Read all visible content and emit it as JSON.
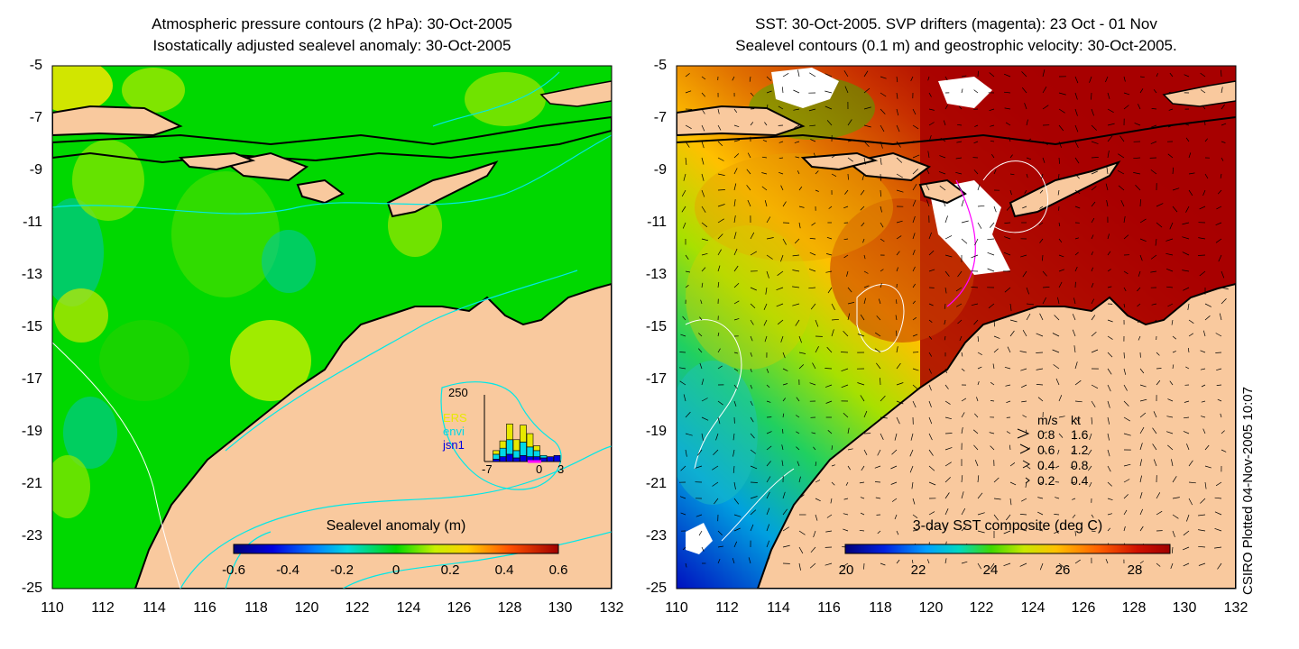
{
  "left_panel": {
    "title_line1": "Atmospheric pressure contours (2 hPa): 30-Oct-2005",
    "title_line2": "Isostatically adjusted sealevel anomaly: 30-Oct-2005",
    "colorbar_title": "Sealevel anomaly (m)",
    "colorbar_ticks": [
      "-0.6",
      "-0.4",
      "-0.2",
      "0",
      "0.2",
      "0.4",
      "0.6"
    ],
    "inset": {
      "ymax_label": "250",
      "series_labels": [
        "ERS",
        "envi",
        "jsn1"
      ],
      "series_colors": [
        "#e8e800",
        "#00d8e8",
        "#0000e0"
      ],
      "x_labels": [
        "-7",
        "0",
        "3"
      ],
      "bars": [
        {
          "ers": 0,
          "envi": 0,
          "jsn1": 0
        },
        {
          "ers": 30,
          "envi": 40,
          "jsn1": 20
        },
        {
          "ers": 60,
          "envi": 70,
          "jsn1": 40
        },
        {
          "ers": 130,
          "envi": 120,
          "jsn1": 60
        },
        {
          "ers": 90,
          "envi": 60,
          "jsn1": 30
        },
        {
          "ers": 140,
          "envi": 110,
          "jsn1": 50
        },
        {
          "ers": 110,
          "envi": 80,
          "jsn1": 40
        },
        {
          "ers": 40,
          "envi": 50,
          "jsn1": 40
        },
        {
          "ers": 0,
          "envi": 20,
          "jsn1": 30
        },
        {
          "ers": 0,
          "envi": 0,
          "jsn1": 40
        },
        {
          "ers": 0,
          "envi": 0,
          "jsn1": 50
        }
      ]
    }
  },
  "right_panel": {
    "title_line1": "SST: 30-Oct-2005. SVP drifters (magenta): 23 Oct - 01 Nov",
    "title_line2": "Sealevel contours (0.1 m) and geostrophic velocity: 30-Oct-2005.",
    "colorbar_title": "3-day SST composite (deg C)",
    "colorbar_ticks": [
      "20",
      "22",
      "24",
      "26",
      "28"
    ],
    "velocity_legend": {
      "header_ms": "m/s",
      "header_kt": "kt",
      "rows": [
        {
          "ms": "0.8",
          "kt": "1.6"
        },
        {
          "ms": "0.6",
          "kt": "1.2"
        },
        {
          "ms": "0.4",
          "kt": "0.8"
        },
        {
          "ms": "0.2",
          "kt": "0.4"
        }
      ]
    }
  },
  "axes": {
    "y_ticks": [
      "-5",
      "-7",
      "-9",
      "-11",
      "-13",
      "-15",
      "-17",
      "-19",
      "-21",
      "-23",
      "-25"
    ],
    "x_ticks": [
      "110",
      "112",
      "114",
      "116",
      "118",
      "120",
      "122",
      "124",
      "126",
      "128",
      "130",
      "132"
    ]
  },
  "credit": "CSIRO Plotted 04-Nov-2005 10:07",
  "colors": {
    "land": "#f9c99e",
    "coast": "#000000",
    "sla_base": "#00d800",
    "sst_warm": "#a80000"
  }
}
